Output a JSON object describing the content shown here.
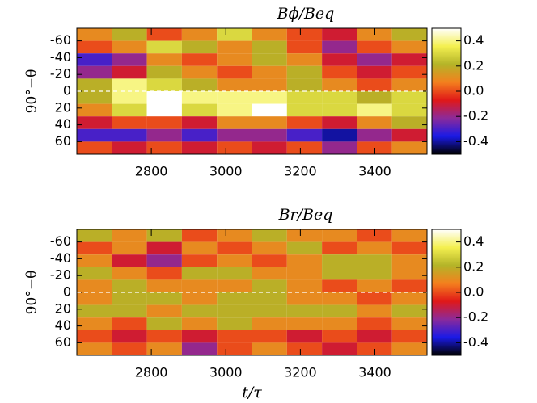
{
  "chart_data": [
    {
      "type": "heatmap",
      "title": "Bϕ/Beq",
      "ylabel": "90°−θ",
      "x": [
        2647,
        2741,
        2835,
        2929,
        3023,
        3117,
        3211,
        3305,
        3399,
        3493
      ],
      "y": [
        -67.5,
        -52.5,
        -37.5,
        -22.5,
        -7.5,
        7.5,
        22.5,
        37.5,
        52.5,
        67.5
      ],
      "z": [
        [
          0.1,
          0.2,
          0.0,
          0.1,
          0.3,
          0.1,
          0.0,
          -0.1,
          0.1,
          0.2
        ],
        [
          0.0,
          0.1,
          0.3,
          0.2,
          0.1,
          0.2,
          0.0,
          -0.2,
          0.0,
          0.1
        ],
        [
          -0.3,
          -0.2,
          0.1,
          0.0,
          0.1,
          0.2,
          0.1,
          -0.1,
          -0.2,
          -0.1
        ],
        [
          -0.2,
          -0.1,
          0.2,
          0.1,
          0.0,
          0.1,
          0.2,
          0.0,
          -0.1,
          0.0
        ],
        [
          0.2,
          0.4,
          0.3,
          0.2,
          0.1,
          0.1,
          0.2,
          0.1,
          0.0,
          0.1
        ],
        [
          0.2,
          0.4,
          0.5,
          0.4,
          0.4,
          0.4,
          0.3,
          0.3,
          0.2,
          0.3
        ],
        [
          0.1,
          0.3,
          0.5,
          0.3,
          0.4,
          0.5,
          0.3,
          0.3,
          0.4,
          0.3
        ],
        [
          -0.1,
          0.0,
          0.0,
          -0.1,
          0.1,
          0.1,
          0.0,
          -0.1,
          0.1,
          0.2
        ],
        [
          -0.3,
          -0.3,
          -0.2,
          -0.3,
          -0.2,
          -0.2,
          -0.3,
          -0.4,
          -0.2,
          -0.1
        ],
        [
          0.0,
          -0.1,
          0.0,
          -0.1,
          0.0,
          -0.1,
          0.0,
          -0.2,
          0.0,
          0.1
        ]
      ],
      "xlim": [
        2600,
        3540
      ],
      "ylim": [
        -75,
        75
      ],
      "xticks": [
        2800,
        3000,
        3200,
        3400
      ],
      "yticks": [
        -60,
        -40,
        -20,
        0,
        20,
        40,
        60
      ],
      "clim": [
        -0.5,
        0.5
      ],
      "cticks": [
        0.4,
        0.2,
        {
          "value": 0,
          "label": "0.0"
        },
        -0.2,
        -0.4
      ],
      "colormap": [
        "#000000",
        "#1a1ae6",
        "#8c2a9a",
        "#e01818",
        "#f4801e",
        "#b4b428",
        "#f4f050",
        "#ffffff"
      ]
    },
    {
      "type": "heatmap",
      "title": "Br/Beq",
      "ylabel": "90°−θ",
      "xlabel": "t/τ",
      "x": [
        2647,
        2741,
        2835,
        2929,
        3023,
        3117,
        3211,
        3305,
        3399,
        3493
      ],
      "y": [
        -67.5,
        -52.5,
        -37.5,
        -22.5,
        -7.5,
        7.5,
        22.5,
        37.5,
        52.5,
        67.5
      ],
      "z": [
        [
          0.2,
          0.1,
          0.2,
          0.0,
          0.1,
          0.2,
          0.1,
          0.1,
          0.0,
          0.1
        ],
        [
          0.0,
          0.1,
          -0.1,
          0.1,
          0.0,
          0.1,
          0.2,
          0.0,
          0.1,
          0.0
        ],
        [
          0.1,
          -0.1,
          -0.2,
          0.0,
          0.1,
          0.0,
          0.1,
          0.2,
          0.2,
          0.1
        ],
        [
          0.2,
          0.1,
          0.0,
          0.2,
          0.2,
          0.1,
          0.1,
          0.2,
          0.2,
          0.1
        ],
        [
          0.1,
          0.2,
          0.1,
          0.1,
          0.1,
          0.2,
          0.1,
          0.0,
          0.1,
          0.0
        ],
        [
          0.1,
          0.2,
          0.2,
          0.1,
          0.2,
          0.2,
          0.1,
          0.1,
          0.0,
          0.1
        ],
        [
          0.2,
          0.2,
          0.1,
          0.2,
          0.2,
          0.2,
          0.2,
          0.2,
          0.1,
          0.2
        ],
        [
          0.1,
          0.0,
          0.2,
          0.1,
          0.2,
          0.1,
          0.1,
          0.1,
          0.0,
          0.1
        ],
        [
          0.0,
          -0.1,
          0.0,
          -0.1,
          0.0,
          0.0,
          -0.1,
          0.0,
          -0.1,
          0.0
        ],
        [
          0.1,
          0.0,
          0.1,
          -0.2,
          0.0,
          0.1,
          0.0,
          -0.1,
          0.0,
          0.1
        ]
      ],
      "xlim": [
        2600,
        3540
      ],
      "ylim": [
        -75,
        75
      ],
      "xticks": [
        2800,
        3000,
        3200,
        3400
      ],
      "yticks": [
        -60,
        -40,
        -20,
        0,
        20,
        40,
        60
      ],
      "clim": [
        -0.5,
        0.5
      ],
      "cticks": [
        0.4,
        0.2,
        {
          "value": 0,
          "label": "0.0"
        },
        -0.2,
        -0.4
      ],
      "colormap": [
        "#000000",
        "#1a1ae6",
        "#8c2a9a",
        "#e01818",
        "#f4801e",
        "#b4b428",
        "#f4f050",
        "#ffffff"
      ]
    }
  ]
}
